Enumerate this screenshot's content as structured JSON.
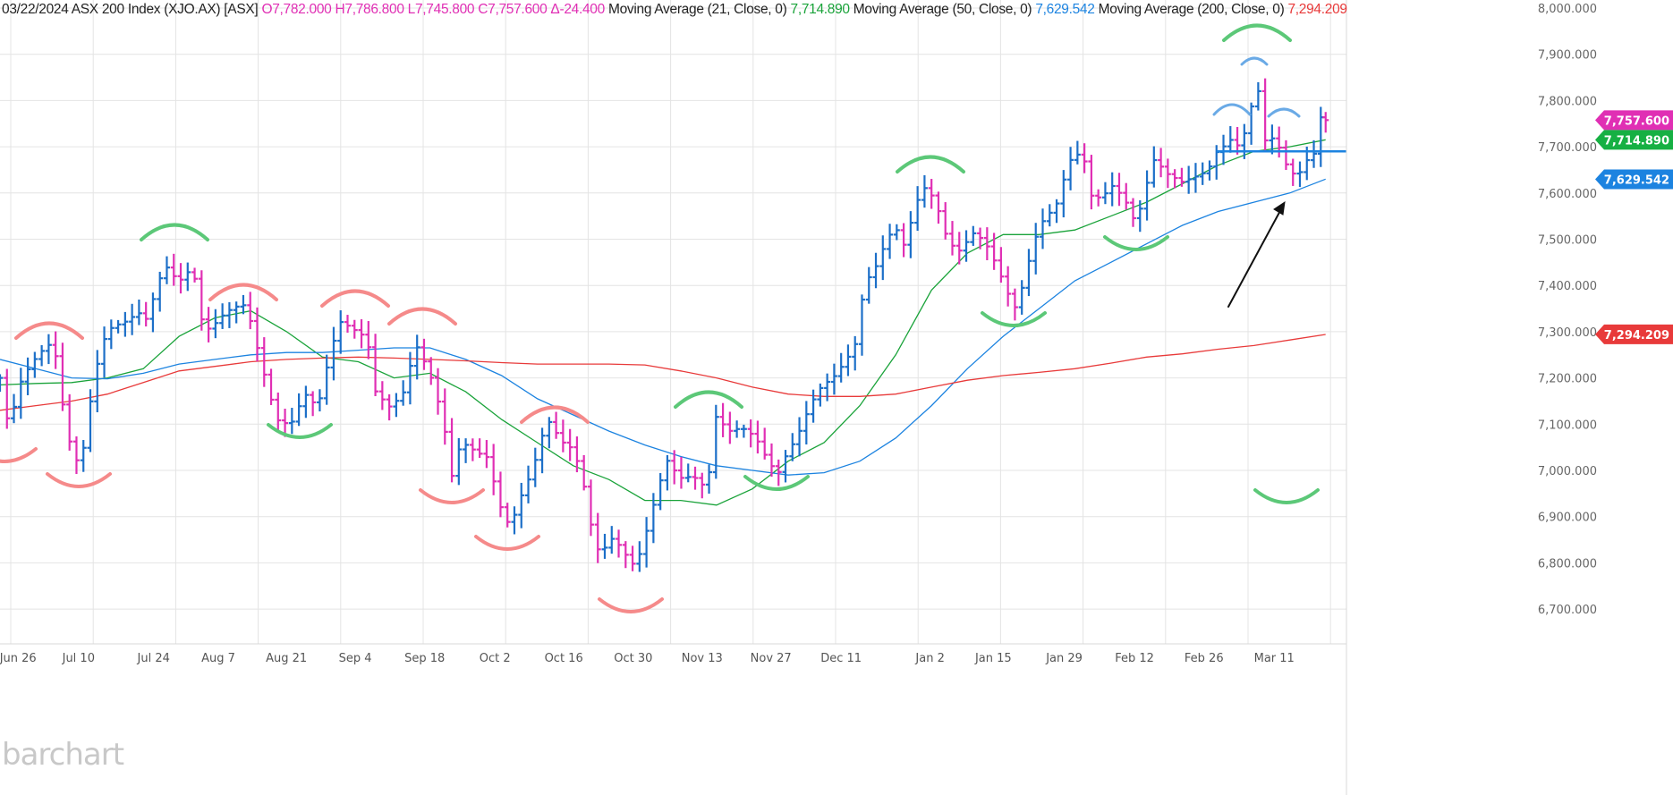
{
  "header": {
    "date": "03/22/2024",
    "symbol": "ASX 200 Index (XJO.AX) [ASX]",
    "open": "O7,782.000",
    "high": "H7,786.800",
    "low": "L7,745.800",
    "close": "C7,757.600",
    "change": "Δ-24.400",
    "ma21_label": "Moving Average  (21, Close, 0)",
    "ma21_value": "7,714.890",
    "ma50_label": "Moving Average  (50, Close, 0)",
    "ma50_value": "7,629.542",
    "ma200_label": "Moving Average  (200, Close, 0)",
    "ma200_value": "7,294.209"
  },
  "logo": "barchart",
  "chart_data": {
    "type": "line",
    "subtype": "ohlc-bars",
    "title": "ASX 200 Index (XJO.AX) [ASX]",
    "ylim": [
      6700,
      8000
    ],
    "y_ticks": [
      8000,
      7900,
      7800,
      7700,
      7600,
      7500,
      7400,
      7300,
      7200,
      7100,
      7000,
      6900,
      6800,
      6700
    ],
    "y_tick_labels": [
      "8,000.000",
      "7,900.000",
      "7,800.000",
      "7,700.000",
      "7,600.000",
      "7,500.000",
      "7,400.000",
      "7,300.000",
      "7,200.000",
      "7,100.000",
      "7,000.000",
      "6,900.000",
      "6,800.000",
      "6,700.000"
    ],
    "x_ticks": [
      {
        "label": "Jun 26",
        "day": 2.6
      },
      {
        "label": "Jul 10",
        "day": 11.3
      },
      {
        "label": "Jul 24",
        "day": 22.1
      },
      {
        "label": "Aug 7",
        "day": 31.4
      },
      {
        "label": "Aug 21",
        "day": 41.2
      },
      {
        "label": "Sep 4",
        "day": 51.1
      },
      {
        "label": "Sep 18",
        "day": 61.1
      },
      {
        "label": "Oct 2",
        "day": 71.2
      },
      {
        "label": "Oct 16",
        "day": 81.1
      },
      {
        "label": "Oct 30",
        "day": 91.1
      },
      {
        "label": "Nov 13",
        "day": 101
      },
      {
        "label": "Nov 27",
        "day": 110.9
      },
      {
        "label": "Dec 11",
        "day": 121
      },
      {
        "label": "Jan 2",
        "day": 133.8
      },
      {
        "label": "Jan 15",
        "day": 142.9
      },
      {
        "label": "Jan 29",
        "day": 153.1
      },
      {
        "label": "Feb 12",
        "day": 163.2
      },
      {
        "label": "Feb 26",
        "day": 173.2
      },
      {
        "label": "Mar 11",
        "day": 183.3
      }
    ],
    "last_day": 190.7,
    "close_keypoints": [
      [
        0,
        7200
      ],
      [
        1.3,
        7080
      ],
      [
        2.6,
        7170
      ],
      [
        4.5,
        7220
      ],
      [
        6.4,
        7260
      ],
      [
        7.7,
        7280
      ],
      [
        9,
        7150
      ],
      [
        10.3,
        7050
      ],
      [
        11.6,
        7020
      ],
      [
        12.9,
        7150
      ],
      [
        14.2,
        7250
      ],
      [
        15.4,
        7300
      ],
      [
        18,
        7310
      ],
      [
        20,
        7330
      ],
      [
        21.2,
        7320
      ],
      [
        22.5,
        7400
      ],
      [
        23.8,
        7450
      ],
      [
        25.7,
        7420
      ],
      [
        27.7,
        7450
      ],
      [
        29,
        7330
      ],
      [
        30.2,
        7300
      ],
      [
        31.5,
        7320
      ],
      [
        33.5,
        7340
      ],
      [
        35.4,
        7350
      ],
      [
        36.7,
        7280
      ],
      [
        38.6,
        7180
      ],
      [
        39.9,
        7120
      ],
      [
        41.8,
        7110
      ],
      [
        43.8,
        7170
      ],
      [
        45.7,
        7130
      ],
      [
        47.6,
        7250
      ],
      [
        48.9,
        7310
      ],
      [
        50.8,
        7300
      ],
      [
        52.8,
        7290
      ],
      [
        54,
        7180
      ],
      [
        56,
        7150
      ],
      [
        57.9,
        7170
      ],
      [
        59.8,
        7270
      ],
      [
        61.8,
        7200
      ],
      [
        63.7,
        7100
      ],
      [
        65,
        6980
      ],
      [
        66.3,
        7060
      ],
      [
        68.2,
        7050
      ],
      [
        70.1,
        7040
      ],
      [
        72,
        6930
      ],
      [
        73.4,
        6880
      ],
      [
        74.6,
        6930
      ],
      [
        76.6,
        6990
      ],
      [
        77.9,
        7060
      ],
      [
        79.2,
        7100
      ],
      [
        80.4,
        7060
      ],
      [
        82.4,
        7050
      ],
      [
        83.7,
        7000
      ],
      [
        84.9,
        6900
      ],
      [
        86.2,
        6830
      ],
      [
        88.2,
        6860
      ],
      [
        90.1,
        6810
      ],
      [
        91.4,
        6780
      ],
      [
        92.7,
        6840
      ],
      [
        94.6,
        6950
      ],
      [
        95.9,
        7020
      ],
      [
        97.8,
        6990
      ],
      [
        99.7,
        7000
      ],
      [
        101.7,
        6970
      ],
      [
        103,
        7120
      ],
      [
        104.9,
        7080
      ],
      [
        106.8,
        7080
      ],
      [
        108.7,
        7060
      ],
      [
        110.7,
        7010
      ],
      [
        112,
        7000
      ],
      [
        113.3,
        7050
      ],
      [
        114.5,
        7080
      ],
      [
        116.5,
        7150
      ],
      [
        117.8,
        7180
      ],
      [
        119,
        7190
      ],
      [
        120.3,
        7200
      ],
      [
        122.3,
        7240
      ],
      [
        123.6,
        7280
      ],
      [
        124.2,
        7400
      ],
      [
        125.5,
        7420
      ],
      [
        127.4,
        7500
      ],
      [
        128.7,
        7540
      ],
      [
        130,
        7500
      ],
      [
        131.3,
        7560
      ],
      [
        132.6,
        7620
      ],
      [
        133.8,
        7600
      ],
      [
        135.1,
        7550
      ],
      [
        136.4,
        7480
      ],
      [
        138.4,
        7460
      ],
      [
        139.6,
        7510
      ],
      [
        141.6,
        7500
      ],
      [
        143.5,
        7450
      ],
      [
        144.8,
        7400
      ],
      [
        146.1,
        7360
      ],
      [
        147.4,
        7420
      ],
      [
        148.6,
        7490
      ],
      [
        149.9,
        7530
      ],
      [
        151.9,
        7560
      ],
      [
        153.8,
        7660
      ],
      [
        155.7,
        7690
      ],
      [
        157,
        7600
      ],
      [
        158.3,
        7600
      ],
      [
        160.2,
        7630
      ],
      [
        162.2,
        7580
      ],
      [
        163.4,
        7530
      ],
      [
        164.7,
        7600
      ],
      [
        166,
        7660
      ],
      [
        168,
        7630
      ],
      [
        169.9,
        7620
      ],
      [
        171.8,
        7640
      ],
      [
        173.7,
        7660
      ],
      [
        175,
        7700
      ],
      [
        177,
        7720
      ],
      [
        178.2,
        7700
      ],
      [
        179.5,
        7740
      ],
      [
        180.8,
        7840
      ],
      [
        181.7,
        7700
      ],
      [
        183.4,
        7710
      ],
      [
        185.3,
        7650
      ],
      [
        186.6,
        7640
      ],
      [
        187.9,
        7680
      ],
      [
        189.2,
        7700
      ],
      [
        189.8,
        7780
      ],
      [
        190.7,
        7757.6
      ]
    ],
    "series": [
      {
        "name": "Moving Average (21, Close, 0)",
        "color": "#1aa33a",
        "last": "7,714.890",
        "values": [
          7185,
          7188,
          7190,
          7200,
          7220,
          7290,
          7330,
          7345,
          7300,
          7245,
          7235,
          7200,
          7210,
          7170,
          7110,
          7060,
          7010,
          6980,
          6935,
          6935,
          6925,
          6960,
          7020,
          7060,
          7140,
          7250,
          7390,
          7470,
          7510,
          7510,
          7520,
          7550,
          7580,
          7620,
          7660,
          7690,
          7700,
          7715
        ]
      },
      {
        "name": "Moving Average (50, Close, 0)",
        "color": "#1c83e0",
        "last": "7,629.542",
        "values": [
          7240,
          7220,
          7200,
          7198,
          7210,
          7230,
          7240,
          7250,
          7255,
          7255,
          7260,
          7265,
          7265,
          7240,
          7205,
          7155,
          7120,
          7085,
          7055,
          7030,
          7010,
          7000,
          6990,
          6995,
          7020,
          7070,
          7140,
          7220,
          7290,
          7350,
          7410,
          7450,
          7490,
          7530,
          7560,
          7580,
          7600,
          7630
        ]
      },
      {
        "name": "Moving Average (200, Close, 0)",
        "color": "#e83a3a",
        "last": "7,294.209",
        "values": [
          7130,
          7140,
          7150,
          7165,
          7190,
          7215,
          7225,
          7235,
          7240,
          7243,
          7245,
          7243,
          7240,
          7237,
          7233,
          7230,
          7230,
          7230,
          7228,
          7215,
          7200,
          7180,
          7165,
          7160,
          7160,
          7165,
          7180,
          7195,
          7205,
          7212,
          7220,
          7232,
          7245,
          7252,
          7262,
          7270,
          7282,
          7294
        ]
      }
    ],
    "last_price": {
      "value": 7757.6,
      "label": "7,757.600",
      "color": "#e02fb4"
    },
    "up_color": "#1c6fc8",
    "down_color": "#e02fb4",
    "support_line": {
      "price": 7690,
      "from_day": 175,
      "color": "#1c83e0"
    },
    "grid": true
  }
}
